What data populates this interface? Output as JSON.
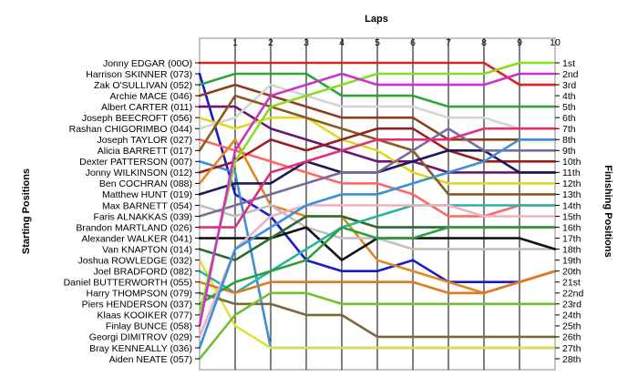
{
  "chart_data": {
    "type": "line",
    "title": "",
    "top_axis_title": "Laps",
    "left_axis_title": "Starting Positions",
    "right_axis_title": "Finishing Positions",
    "x": [
      0,
      1,
      2,
      3,
      4,
      5,
      6,
      7,
      8,
      9,
      10
    ],
    "x_tick_labels": [
      "1",
      "2",
      "3",
      "4",
      "5",
      "6",
      "7",
      "8",
      "9",
      "10"
    ],
    "start_labels": [
      "Jonny EDGAR (00O)",
      "Harrison SKINNER (073)",
      "Zak O'SULLIVAN (052)",
      "Archie MACE (046)",
      "Albert CARTER (011)",
      "Joseph BEECROFT (056)",
      "Rashan CHIGORIMBO (044)",
      "Joseph TAYLOR (027)",
      "Alicia BARRETT (017)",
      "Dexter PATTERSON (007)",
      "Jonny WILKINSON (012)",
      "Ben COCHRAN (088)",
      "Matthew HUNT (019)",
      "Max BARNETT (054)",
      "Faris ALNAKKAS (039)",
      "Brandon MARTLAND (026)",
      "Alexander WALKER (041)",
      "Van KNAPTON (014)",
      "Joshua ROWLEDGE (032)",
      "Joel BRADFORD (082)",
      "Daniel BUTTERWORTH (055)",
      "Harry THOMPSON (079)",
      "Piers HENDERSON (037)",
      "Klaas KOOIKER (077)",
      "Finlay BUNCE (058)",
      "Georgi DIMITROV (029)",
      "Bray KENNEALLY (036)",
      "Aiden NEATE (057)"
    ],
    "finish_labels": [
      "1st",
      "2nd",
      "3rd",
      "4th",
      "5th",
      "6th",
      "7th",
      "8th",
      "9th",
      "10th",
      "11th",
      "12th",
      "13th",
      "14th",
      "15th",
      "16th",
      "17th",
      "18th",
      "19th",
      "20th",
      "21st",
      "22nd",
      "23rd",
      "24th",
      "25th",
      "26th",
      "27th",
      "28th"
    ],
    "y_range": [
      1,
      28
    ],
    "grid": "vertical",
    "series": [
      {
        "start": 1,
        "color": "#d62424",
        "values": [
          1,
          1,
          1,
          1,
          1,
          1,
          1,
          1,
          1,
          3,
          3
        ]
      },
      {
        "start": 2,
        "color": "#1a1acc",
        "values": [
          2,
          13,
          15,
          19,
          20,
          20,
          19,
          21,
          21,
          21,
          20
        ]
      },
      {
        "start": 3,
        "color": "#2fa43a",
        "values": [
          3,
          2,
          2,
          2,
          4,
          4,
          4,
          5,
          5,
          5,
          5
        ]
      },
      {
        "start": 4,
        "color": "#8c3e1e",
        "values": [
          4,
          3,
          4,
          5,
          6,
          6,
          6,
          8,
          8,
          8,
          8
        ]
      },
      {
        "start": 5,
        "color": "#6a1678",
        "values": [
          5,
          5,
          7,
          8,
          9,
          10,
          10,
          11,
          11,
          11,
          11
        ]
      },
      {
        "start": 6,
        "color": "#e0d820",
        "values": [
          6,
          7,
          6,
          6,
          8,
          9,
          11,
          12,
          12,
          12,
          12
        ]
      },
      {
        "start": 7,
        "color": "#d4d4d4",
        "values": [
          7,
          6,
          3,
          4,
          5,
          5,
          5,
          6,
          6,
          7,
          7
        ]
      },
      {
        "start": 8,
        "color": "#ff6666",
        "values": [
          8,
          9,
          10,
          11,
          12,
          12,
          13,
          15,
          15,
          14,
          14
        ]
      },
      {
        "start": 9,
        "color": "#8a5a20",
        "values": [
          9,
          4,
          5,
          6,
          7,
          8,
          9,
          13,
          13,
          13,
          13
        ]
      },
      {
        "start": 10,
        "color": "#3a8edc",
        "values": [
          10,
          11,
          27,
          27,
          27,
          27,
          27,
          27,
          27,
          27,
          27
        ]
      },
      {
        "start": 11,
        "color": "#9a1e1e",
        "values": [
          11,
          10,
          8,
          9,
          8,
          7,
          7,
          9,
          10,
          10,
          10
        ]
      },
      {
        "start": 12,
        "color": "#e08820",
        "values": [
          12,
          8,
          14,
          15,
          15,
          19,
          20,
          21,
          22,
          21,
          20
        ]
      },
      {
        "start": 13,
        "color": "#1a1a5a",
        "values": [
          13,
          12,
          12,
          10,
          11,
          11,
          10,
          9,
          9,
          11,
          11
        ]
      },
      {
        "start": 14,
        "color": "#c0c0c0",
        "values": [
          14,
          15,
          14,
          16,
          17,
          17,
          18,
          18,
          18,
          18,
          18
        ]
      },
      {
        "start": 15,
        "color": "#7a6a9a",
        "values": [
          15,
          14,
          13,
          12,
          11,
          11,
          9,
          7,
          9,
          9,
          9
        ]
      },
      {
        "start": 16,
        "color": "#e0307a",
        "values": [
          16,
          16,
          11,
          10,
          9,
          8,
          8,
          8,
          7,
          7,
          7
        ]
      },
      {
        "start": 17,
        "color": "#111111",
        "values": [
          17,
          17,
          17,
          16,
          19,
          17,
          17,
          17,
          17,
          17,
          18
        ]
      },
      {
        "start": 18,
        "color": "#2a6a2a",
        "values": [
          18,
          19,
          17,
          15,
          15,
          16,
          16,
          16,
          16,
          16,
          16
        ]
      },
      {
        "start": 19,
        "color": "#e0e040",
        "values": [
          19,
          25,
          27,
          27,
          27,
          27,
          27,
          27,
          27,
          27,
          27
        ]
      },
      {
        "start": 20,
        "color": "#28b4a0",
        "values": [
          20,
          22,
          20,
          18,
          16,
          15,
          14,
          14,
          14,
          14,
          14
        ]
      },
      {
        "start": 21,
        "color": "#e07a20",
        "values": [
          21,
          22,
          21,
          21,
          21,
          21,
          21,
          22,
          22,
          21,
          20
        ]
      },
      {
        "start": 22,
        "color": "#7a6a3a",
        "values": [
          22,
          23,
          23,
          24,
          24,
          26,
          26,
          26,
          26,
          26,
          26
        ]
      },
      {
        "start": 23,
        "color": "#2aa040",
        "values": [
          23,
          21,
          20,
          19,
          16,
          17,
          17,
          16,
          16,
          16,
          16
        ]
      },
      {
        "start": 24,
        "color": "#88dd22",
        "values": [
          24,
          10,
          5,
          4,
          3,
          2,
          2,
          2,
          2,
          1,
          1
        ]
      },
      {
        "start": 25,
        "color": "#cc33cc",
        "values": [
          25,
          9,
          4,
          3,
          2,
          3,
          3,
          3,
          3,
          2,
          2
        ]
      },
      {
        "start": 26,
        "color": "#f0b0c0",
        "values": [
          26,
          18,
          15,
          14,
          14,
          14,
          14,
          14,
          15,
          15,
          15
        ]
      },
      {
        "start": 27,
        "color": "#3a8edc",
        "values": [
          27,
          18,
          16,
          14,
          13,
          13,
          12,
          11,
          10,
          8,
          8
        ]
      },
      {
        "start": 28,
        "color": "#70c030",
        "values": [
          28,
          24,
          22,
          22,
          23,
          23,
          23,
          23,
          23,
          23,
          23
        ]
      }
    ]
  }
}
